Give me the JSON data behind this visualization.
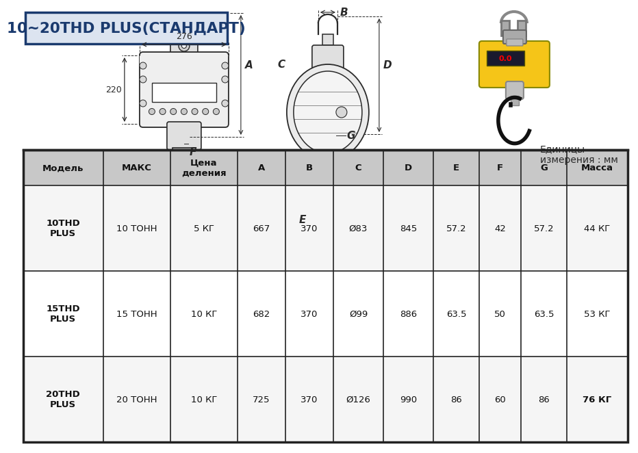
{
  "title": "10~20THD PLUS(СТАНДАРТ)",
  "units_label": "Единицы\nизмерения : мм",
  "dim_276": "276",
  "dim_220": "220",
  "table_headers": [
    "Модель",
    "МАКС",
    "Цена\nделения",
    "A",
    "B",
    "C",
    "D",
    "E",
    "F",
    "G",
    "Масса"
  ],
  "table_rows": [
    [
      "10THD\nPLUS",
      "10 ТОНН",
      "5 КГ",
      "667",
      "370",
      "Ø83",
      "845",
      "57.2",
      "42",
      "57.2",
      "44 КГ"
    ],
    [
      "15THD\nPLUS",
      "15 ТОНН",
      "10 КГ",
      "682",
      "370",
      "Ø99",
      "886",
      "63.5",
      "50",
      "63.5",
      "53 КГ"
    ],
    [
      "20THD\nPLUS",
      "20 ТОНН",
      "10 КГ",
      "725",
      "370",
      "Ø126",
      "990",
      "86",
      "60",
      "86",
      "76 КГ"
    ]
  ],
  "header_bg": "#c8c8c8",
  "table_border": "#222222",
  "title_border": "#1a3a6e",
  "title_color": "#1a3a6e",
  "bg_color": "#ffffff",
  "dc": "#2a2a2a"
}
